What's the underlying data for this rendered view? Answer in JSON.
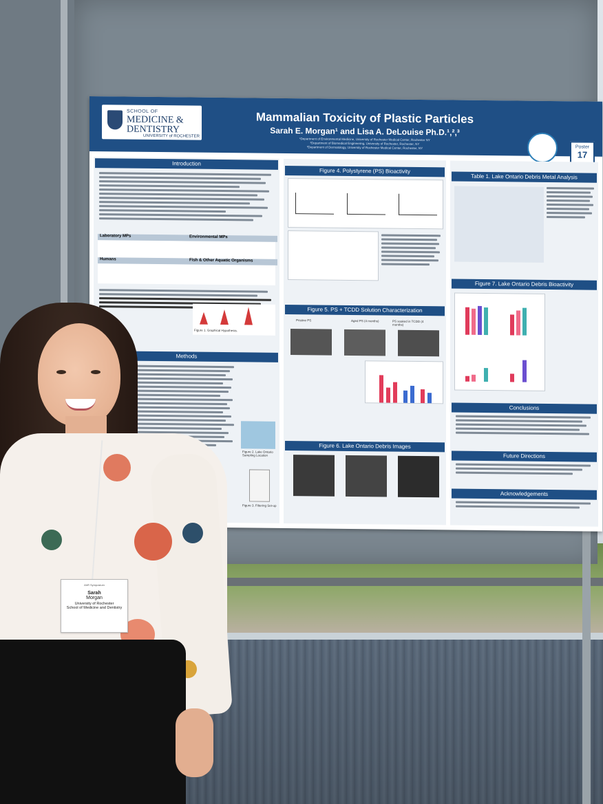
{
  "poster": {
    "institution_line1": "SCHOOL OF",
    "institution_line2": "MEDICINE &",
    "institution_line3": "DENTISTRY",
    "institution_line4": "UNIVERSITY of ROCHESTER",
    "title": "Mammalian Toxicity of Plastic Particles",
    "authors": "Sarah E. Morgan¹ and Lisa A. DeLouise Ph.D.¹,²,³",
    "affiliations": [
      "¹Department of Environmental Medicine, University of Rochester Medical Center, Rochester NY",
      "²Department of Biomedical Engineering, University of Rochester, Rochester, NY",
      "³Department of Dermatology, University of Rochester Medical Center, Rochester, NY"
    ],
    "poster_label": "Poster",
    "poster_number": "17",
    "sections": {
      "introduction": "Introduction",
      "methods": "Methods",
      "fig4": "Figure 4. Polystyrene (PS) Bioactivity",
      "fig5": "Figure 5. PS + TCDD Solution Characterization",
      "fig6": "Figure 6. Lake Ontario Debris Images",
      "table1": "Table 1. Lake Ontario Debris Metal Analysis",
      "fig7": "Figure 7. Lake Ontario Debris Bioactivity",
      "conclusions": "Conclusions",
      "future": "Future Directions",
      "ack": "Acknowledgements"
    },
    "intro_table": {
      "h1": "Laboratory MPs",
      "h2": "Environmental MPs",
      "h3": "Humans",
      "h4": "Fish & Other Aquatic Organisms"
    },
    "fig5_labels": {
      "a1": "Pristine PS",
      "a2": "Aged PS (4 months)",
      "a3": "PS soaked in TCDD (4 months)"
    },
    "fig1_caption": "Figure 1. Graphical Hypothesis.",
    "fig2_caption": "Figure 2. Lake Ontario Sampling Location",
    "fig3_caption": "Figure 3. Filtering Set-up"
  },
  "badge": {
    "event": "AhR Symposium",
    "first_name": "Sarah",
    "last_name": "Morgan",
    "institution": "University of Rochester",
    "school": "School of Medicine and Dentistry"
  }
}
